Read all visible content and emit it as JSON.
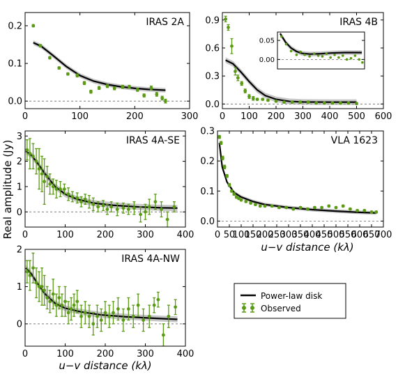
{
  "figure": {
    "ylabel": "Real amplitude (Jy)",
    "xlabel": "u−v distance (kλ)",
    "colors": {
      "model": "#000000",
      "band": "#999999",
      "observed": "#5a9a14",
      "zero": "#666666"
    }
  },
  "legend": {
    "model_label": "Power-law disk",
    "observed_label": "Observed"
  },
  "chart_data": [
    {
      "type": "scatter",
      "title": "IRAS 2A",
      "xlim": [
        0,
        300
      ],
      "ylim": [
        -0.02,
        0.235
      ],
      "xticks": [
        0,
        100,
        200,
        300
      ],
      "yticks": [
        0.0,
        0.1,
        0.2
      ],
      "ytick_fmt": 1,
      "observed": [
        [
          15,
          0.2,
          0.003
        ],
        [
          28,
          0.147,
          0.003
        ],
        [
          45,
          0.115,
          0.003
        ],
        [
          62,
          0.088,
          0.003
        ],
        [
          78,
          0.072,
          0.003
        ],
        [
          95,
          0.068,
          0.004
        ],
        [
          108,
          0.048,
          0.004
        ],
        [
          120,
          0.025,
          0.004
        ],
        [
          135,
          0.035,
          0.004
        ],
        [
          150,
          0.04,
          0.004
        ],
        [
          163,
          0.034,
          0.004
        ],
        [
          178,
          0.038,
          0.004
        ],
        [
          190,
          0.038,
          0.004
        ],
        [
          205,
          0.03,
          0.004
        ],
        [
          217,
          0.015,
          0.004
        ],
        [
          230,
          0.035,
          0.005
        ],
        [
          240,
          0.018,
          0.005
        ],
        [
          250,
          0.008,
          0.005
        ],
        [
          256,
          0.0,
          0.005
        ]
      ],
      "model": [
        [
          15,
          0.155
        ],
        [
          30,
          0.145
        ],
        [
          50,
          0.122
        ],
        [
          75,
          0.092
        ],
        [
          100,
          0.068
        ],
        [
          125,
          0.053
        ],
        [
          150,
          0.044
        ],
        [
          175,
          0.038
        ],
        [
          200,
          0.034
        ],
        [
          225,
          0.031
        ],
        [
          256,
          0.029
        ]
      ],
      "band_width": 0.006
    },
    {
      "type": "scatter",
      "title": "IRAS 4B",
      "xlim": [
        0,
        600
      ],
      "ylim": [
        -0.05,
        0.98
      ],
      "xticks": [
        0,
        100,
        200,
        300,
        400,
        500,
        600
      ],
      "yticks": [
        0.0,
        0.3,
        0.6,
        0.9
      ],
      "ytick_fmt": 1,
      "observed": [
        [
          12,
          0.91,
          0.03
        ],
        [
          22,
          0.82,
          0.03
        ],
        [
          35,
          0.62,
          0.08
        ],
        [
          48,
          0.35,
          0.04
        ],
        [
          58,
          0.28,
          0.03
        ],
        [
          72,
          0.22,
          0.02
        ],
        [
          85,
          0.14,
          0.02
        ],
        [
          100,
          0.08,
          0.02
        ],
        [
          115,
          0.06,
          0.02
        ],
        [
          130,
          0.05,
          0.01
        ],
        [
          150,
          0.05,
          0.01
        ],
        [
          170,
          0.04,
          0.01
        ],
        [
          200,
          0.03,
          0.01
        ],
        [
          230,
          0.02,
          0.01
        ],
        [
          260,
          0.02,
          0.01
        ],
        [
          290,
          0.02,
          0.01
        ],
        [
          320,
          0.02,
          0.01
        ],
        [
          350,
          0.01,
          0.01
        ],
        [
          380,
          0.01,
          0.01
        ],
        [
          410,
          0.01,
          0.01
        ],
        [
          440,
          0.01,
          0.01
        ],
        [
          470,
          0.01,
          0.01
        ],
        [
          500,
          0.005,
          0.01
        ]
      ],
      "model": [
        [
          12,
          0.47
        ],
        [
          40,
          0.43
        ],
        [
          70,
          0.34
        ],
        [
          100,
          0.24
        ],
        [
          130,
          0.15
        ],
        [
          160,
          0.09
        ],
        [
          200,
          0.05
        ],
        [
          250,
          0.028
        ],
        [
          300,
          0.022
        ],
        [
          400,
          0.02
        ],
        [
          500,
          0.02
        ]
      ],
      "band_width": 0.03,
      "inset": {
        "xlim": [
          200,
          520
        ],
        "ylim": [
          -0.025,
          0.072
        ],
        "yticks": [
          0.0,
          0.05
        ],
        "ytick_fmt": 2,
        "observed": [
          [
            215,
            0.06
          ],
          [
            232,
            0.04
          ],
          [
            250,
            0.022
          ],
          [
            270,
            0.012
          ],
          [
            285,
            0.02
          ],
          [
            300,
            0.012
          ],
          [
            318,
            0.008
          ],
          [
            335,
            0.015
          ],
          [
            350,
            0.01
          ],
          [
            365,
            0.008
          ],
          [
            380,
            0.015
          ],
          [
            395,
            0.005
          ],
          [
            410,
            0.012
          ],
          [
            425,
            0.005
          ],
          [
            440,
            0.01
          ],
          [
            455,
            0.0
          ],
          [
            470,
            0.003
          ],
          [
            485,
            0.01
          ],
          [
            500,
            0.0
          ],
          [
            512,
            -0.008
          ]
        ],
        "model": [
          [
            210,
            0.068
          ],
          [
            230,
            0.045
          ],
          [
            250,
            0.03
          ],
          [
            270,
            0.021
          ],
          [
            290,
            0.016
          ],
          [
            320,
            0.014
          ],
          [
            360,
            0.015
          ],
          [
            400,
            0.017
          ],
          [
            450,
            0.018
          ],
          [
            510,
            0.018
          ]
        ],
        "band_width": 0.006
      }
    },
    {
      "type": "scatter",
      "title": "IRAS 4A-SE",
      "xlim": [
        0,
        400
      ],
      "ylim": [
        -0.6,
        3.2
      ],
      "xticks": [
        0,
        100,
        200,
        300,
        400
      ],
      "yticks": [
        0,
        1,
        2,
        3
      ],
      "ytick_fmt": 0,
      "observed": [
        [
          5,
          2.45,
          0.4
        ],
        [
          12,
          2.3,
          0.6
        ],
        [
          20,
          2.2,
          0.5
        ],
        [
          28,
          2.0,
          0.5
        ],
        [
          35,
          1.7,
          0.8
        ],
        [
          42,
          1.5,
          0.7
        ],
        [
          48,
          1.2,
          0.9
        ],
        [
          55,
          1.4,
          0.4
        ],
        [
          62,
          1.1,
          0.4
        ],
        [
          70,
          1.0,
          0.3
        ],
        [
          78,
          0.9,
          0.35
        ],
        [
          88,
          0.9,
          0.3
        ],
        [
          98,
          0.9,
          0.2
        ],
        [
          108,
          0.7,
          0.25
        ],
        [
          118,
          0.6,
          0.2
        ],
        [
          130,
          0.55,
          0.2
        ],
        [
          140,
          0.4,
          0.2
        ],
        [
          150,
          0.5,
          0.2
        ],
        [
          160,
          0.4,
          0.25
        ],
        [
          170,
          0.3,
          0.25
        ],
        [
          182,
          0.2,
          0.2
        ],
        [
          195,
          0.25,
          0.2
        ],
        [
          205,
          0.1,
          0.2
        ],
        [
          215,
          0.2,
          0.2
        ],
        [
          230,
          0.1,
          0.25
        ],
        [
          245,
          0.15,
          0.2
        ],
        [
          258,
          0.1,
          0.2
        ],
        [
          272,
          0.15,
          0.25
        ],
        [
          288,
          -0.1,
          0.3
        ],
        [
          300,
          0.0,
          0.3
        ],
        [
          310,
          0.2,
          0.3
        ],
        [
          325,
          0.4,
          0.3
        ],
        [
          340,
          0.1,
          0.3
        ],
        [
          355,
          -0.3,
          0.3
        ],
        [
          372,
          0.2,
          0.2
        ]
      ],
      "model": [
        [
          2,
          2.4
        ],
        [
          15,
          2.25
        ],
        [
          30,
          1.95
        ],
        [
          50,
          1.5
        ],
        [
          75,
          1.0
        ],
        [
          100,
          0.7
        ],
        [
          130,
          0.5
        ],
        [
          170,
          0.35
        ],
        [
          220,
          0.26
        ],
        [
          280,
          0.2
        ],
        [
          340,
          0.16
        ],
        [
          380,
          0.15
        ]
      ],
      "band_width": 0.12
    },
    {
      "type": "scatter",
      "title": "VLA 1623",
      "xlim": [
        0,
        700
      ],
      "ylim": [
        -0.02,
        0.3
      ],
      "xticks": [
        0,
        50,
        100,
        150,
        200,
        250,
        300,
        350,
        400,
        450,
        500,
        550,
        600,
        650,
        700
      ],
      "yticks": [
        0.0,
        0.1,
        0.2,
        0.3
      ],
      "ytick_fmt": 1,
      "observed": [
        [
          8,
          0.28,
          0.005
        ],
        [
          15,
          0.26,
          0.005
        ],
        [
          22,
          0.21,
          0.006
        ],
        [
          30,
          0.18,
          0.006
        ],
        [
          40,
          0.15,
          0.005
        ],
        [
          50,
          0.12,
          0.005
        ],
        [
          60,
          0.1,
          0.004
        ],
        [
          70,
          0.09,
          0.004
        ],
        [
          80,
          0.08,
          0.004
        ],
        [
          90,
          0.075,
          0.003
        ],
        [
          100,
          0.07,
          0.003
        ],
        [
          120,
          0.065,
          0.003
        ],
        [
          140,
          0.06,
          0.003
        ],
        [
          160,
          0.055,
          0.003
        ],
        [
          180,
          0.05,
          0.003
        ],
        [
          200,
          0.05,
          0.003
        ],
        [
          230,
          0.05,
          0.003
        ],
        [
          260,
          0.045,
          0.003
        ],
        [
          290,
          0.045,
          0.003
        ],
        [
          320,
          0.04,
          0.003
        ],
        [
          350,
          0.045,
          0.003
        ],
        [
          380,
          0.04,
          0.003
        ],
        [
          410,
          0.045,
          0.003
        ],
        [
          440,
          0.045,
          0.003
        ],
        [
          470,
          0.05,
          0.003
        ],
        [
          500,
          0.045,
          0.003
        ],
        [
          530,
          0.05,
          0.003
        ],
        [
          560,
          0.04,
          0.003
        ],
        [
          590,
          0.035,
          0.003
        ],
        [
          620,
          0.035,
          0.003
        ],
        [
          650,
          0.03,
          0.003
        ],
        [
          670,
          0.03,
          0.003
        ]
      ],
      "model": [
        [
          8,
          0.26
        ],
        [
          20,
          0.18
        ],
        [
          40,
          0.13
        ],
        [
          70,
          0.095
        ],
        [
          100,
          0.08
        ],
        [
          150,
          0.065
        ],
        [
          200,
          0.055
        ],
        [
          300,
          0.045
        ],
        [
          400,
          0.038
        ],
        [
          500,
          0.033
        ],
        [
          600,
          0.029
        ],
        [
          670,
          0.027
        ]
      ],
      "band_width": 0.006
    },
    {
      "type": "scatter",
      "title": "IRAS 4A-NW",
      "xlim": [
        0,
        400
      ],
      "ylim": [
        -0.6,
        2.0
      ],
      "xticks": [
        0,
        100,
        200,
        300,
        400
      ],
      "yticks": [
        0,
        1,
        2
      ],
      "ytick_fmt": 0,
      "observed": [
        [
          5,
          1.4,
          0.3
        ],
        [
          12,
          1.3,
          0.4
        ],
        [
          20,
          1.5,
          0.4
        ],
        [
          28,
          1.1,
          0.4
        ],
        [
          35,
          1.0,
          0.4
        ],
        [
          42,
          1.0,
          0.5
        ],
        [
          48,
          0.9,
          0.4
        ],
        [
          55,
          0.7,
          0.3
        ],
        [
          62,
          0.6,
          0.3
        ],
        [
          70,
          0.8,
          0.4
        ],
        [
          78,
          0.5,
          0.3
        ],
        [
          85,
          0.7,
          0.3
        ],
        [
          92,
          0.5,
          0.3
        ],
        [
          100,
          0.6,
          0.4
        ],
        [
          108,
          0.3,
          0.3
        ],
        [
          115,
          0.4,
          0.3
        ],
        [
          122,
          0.5,
          0.3
        ],
        [
          130,
          0.6,
          0.3
        ],
        [
          140,
          0.2,
          0.3
        ],
        [
          150,
          0.3,
          0.3
        ],
        [
          160,
          0.2,
          0.3
        ],
        [
          170,
          0.0,
          0.3
        ],
        [
          180,
          0.2,
          0.3
        ],
        [
          190,
          0.1,
          0.3
        ],
        [
          200,
          0.3,
          0.3
        ],
        [
          210,
          0.2,
          0.3
        ],
        [
          220,
          0.3,
          0.3
        ],
        [
          232,
          0.4,
          0.3
        ],
        [
          245,
          0.1,
          0.3
        ],
        [
          258,
          0.4,
          0.3
        ],
        [
          270,
          0.2,
          0.3
        ],
        [
          282,
          0.5,
          0.3
        ],
        [
          295,
          0.1,
          0.3
        ],
        [
          310,
          0.2,
          0.3
        ],
        [
          322,
          0.5,
          0.2
        ],
        [
          332,
          0.65,
          0.2
        ],
        [
          345,
          -0.3,
          0.3
        ],
        [
          358,
          0.2,
          0.3
        ],
        [
          375,
          0.45,
          0.2
        ]
      ],
      "model": [
        [
          2,
          1.5
        ],
        [
          15,
          1.35
        ],
        [
          30,
          1.1
        ],
        [
          50,
          0.8
        ],
        [
          75,
          0.55
        ],
        [
          100,
          0.42
        ],
        [
          140,
          0.32
        ],
        [
          190,
          0.24
        ],
        [
          250,
          0.19
        ],
        [
          320,
          0.15
        ],
        [
          380,
          0.12
        ]
      ],
      "band_width": 0.08
    }
  ]
}
